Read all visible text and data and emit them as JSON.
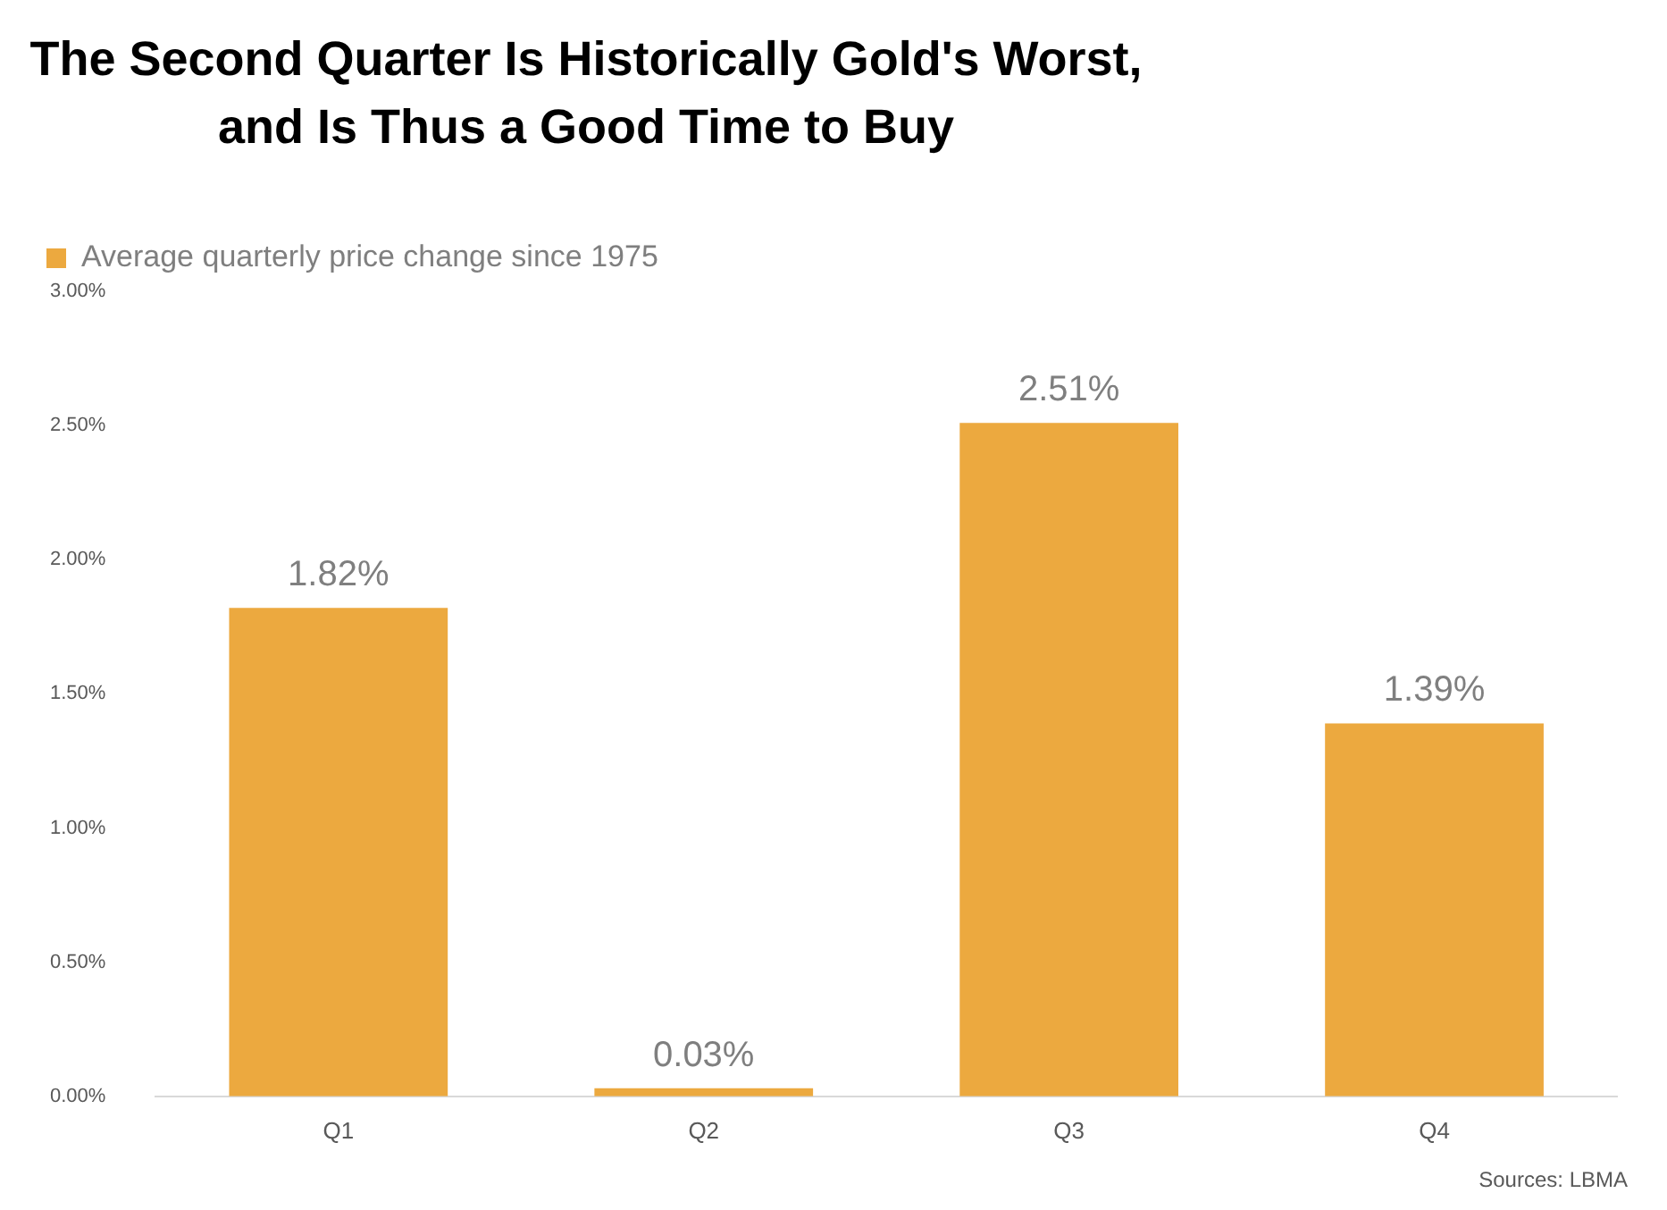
{
  "chart_data": {
    "type": "bar",
    "title": "The Second Quarter Is Historically Gold's Worst,\nand Is Thus a Good Time to Buy",
    "categories": [
      "Q1",
      "Q2",
      "Q3",
      "Q4"
    ],
    "series": [
      {
        "name": "Average quarterly price change since 1975",
        "color": "#eca93f",
        "values": [
          1.82,
          0.03,
          2.51,
          1.39
        ],
        "value_labels": [
          "1.82%",
          "0.03%",
          "2.51%",
          "1.39%"
        ]
      }
    ],
    "ylim": [
      0,
      3
    ],
    "yticks": [
      {
        "value": 0,
        "label": "0.00%"
      },
      {
        "value": 0.5,
        "label": "0.50%"
      },
      {
        "value": 1,
        "label": "1.00%"
      },
      {
        "value": 1.5,
        "label": "1.50%"
      },
      {
        "value": 2,
        "label": "2.00%"
      },
      {
        "value": 2.5,
        "label": "2.50%"
      },
      {
        "value": 3,
        "label": "3.00%"
      }
    ],
    "grid": false,
    "legend": "top left",
    "annotations": [
      "Sources: LBMA"
    ]
  }
}
